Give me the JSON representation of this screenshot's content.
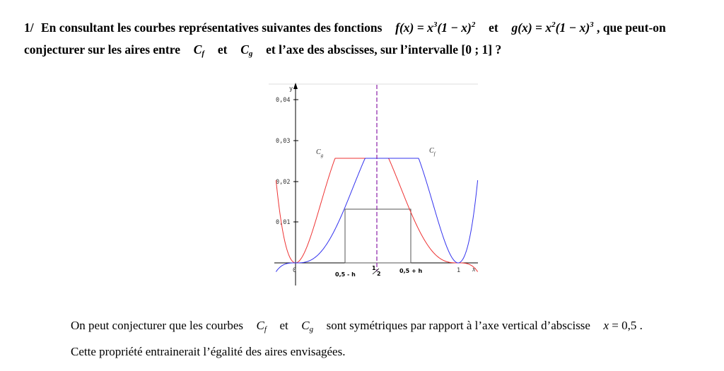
{
  "question": {
    "number": "1/",
    "line1_start": "En consultant les courbes représentatives suivantes des fonctions",
    "f_formula_html": "f(x) = x<sup class=\"s\">3</sup>(1 − x)<sup class=\"s\">2</sup>",
    "connector": "et",
    "g_formula_html": "g(x) = x<sup class=\"s\">2</sup>(1 − x)<sup class=\"s\">3</sup>",
    "line1_end": ", que peut-on",
    "line2_start": "conjecturer sur les aires entre",
    "cf_html": "C<sub class=\"s\">f</sub>",
    "cg_html": "C<sub class=\"s\">g</sub>",
    "line2_mid": "et",
    "line2_end": "et l’axe des abscisses, sur l’intervalle  [0 ; 1] ?"
  },
  "figure": {
    "y_axis_label": "y",
    "x_axis_label": "x",
    "y_ticks": [
      "0,04",
      "0,03",
      "0,02",
      "0,01"
    ],
    "origin_label": "0",
    "x_tick_left": "0,5 - h",
    "x_tick_mid_num": "1",
    "x_tick_mid_den": "2",
    "x_tick_right": "0,5 + h",
    "x_tick_one": "1",
    "label_cg_main": "C",
    "label_cg_sub": "g",
    "label_cf_main": "C",
    "label_cf_sub": "f",
    "colors": {
      "f_curve": "#3333ee",
      "g_curve": "#ee3333",
      "symmetry_axis": "#8a1fa8",
      "rect": "#555555"
    }
  },
  "answer": {
    "line1_start": "On peut conjecturer que les courbes",
    "line1_mid": "et",
    "line1_end": "sont symétriques par rapport à l’axe vertical d’abscisse",
    "equation_html": "<i>x</i> = 0,5 .",
    "line2": "Cette propriété entrainerait l’égalité des aires envisagées."
  }
}
